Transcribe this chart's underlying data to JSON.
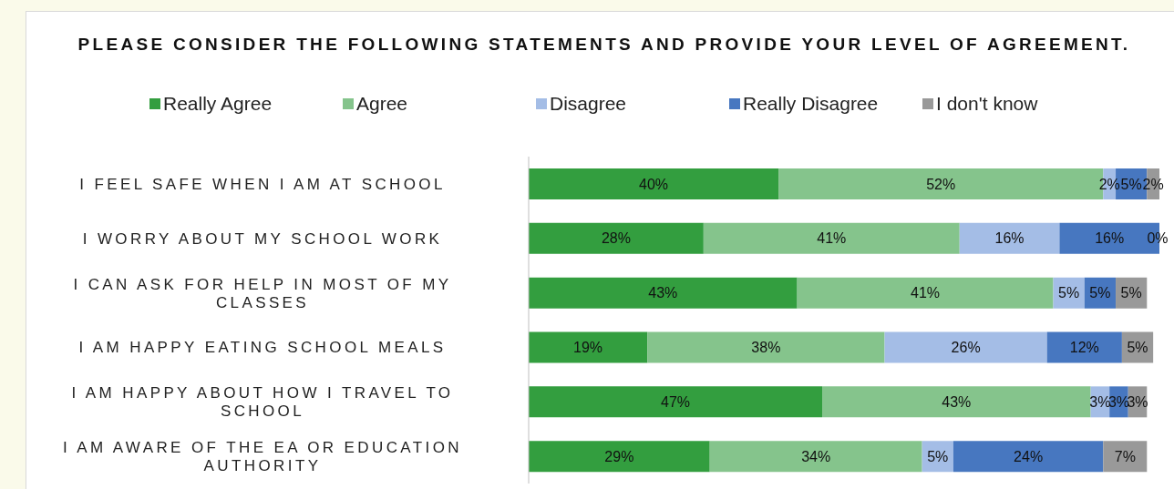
{
  "chart_data": {
    "type": "bar",
    "orientation": "horizontal",
    "stacked": true,
    "title": "PLEASE CONSIDER THE FOLLOWING STATEMENTS AND PROVIDE YOUR LEVEL OF AGREEMENT.",
    "categories": [
      "I FEEL SAFE WHEN I AM AT SCHOOL",
      "I WORRY ABOUT MY SCHOOL WORK",
      "I CAN ASK FOR HELP IN MOST OF MY CLASSES",
      "I AM HAPPY EATING SCHOOL MEALS",
      "I AM HAPPY ABOUT HOW I TRAVEL TO SCHOOL",
      "I AM AWARE OF THE EA OR EDUCATION AUTHORITY"
    ],
    "series": [
      {
        "name": "Really Agree",
        "color": "#339e3f",
        "values": [
          40,
          28,
          43,
          19,
          47,
          29
        ],
        "value_labels": [
          "40%",
          "28%",
          "43%",
          "19%",
          "47%",
          "29%"
        ]
      },
      {
        "name": "Agree",
        "color": "#85c48c",
        "values": [
          52,
          41,
          41,
          38,
          43,
          34
        ],
        "value_labels": [
          "52%",
          "41%",
          "41%",
          "38%",
          "43%",
          "34%"
        ]
      },
      {
        "name": "Disagree",
        "color": "#a4bde6",
        "values": [
          2,
          16,
          5,
          26,
          3,
          5
        ],
        "value_labels": [
          "2%",
          "16%",
          "5%",
          "26%",
          "3%",
          "5%"
        ]
      },
      {
        "name": "Really Disagree",
        "color": "#4777c0",
        "values": [
          5,
          16,
          5,
          12,
          3,
          24
        ],
        "value_labels": [
          "5%",
          "16%",
          "5%",
          "12%",
          "3%",
          "24%"
        ]
      },
      {
        "name": "I don't know",
        "color": "#999999",
        "values": [
          2,
          0,
          5,
          5,
          3,
          7
        ],
        "value_labels": [
          "2%",
          "0%",
          "5%",
          "5%",
          "3%",
          "7%"
        ]
      }
    ],
    "legend": "top"
  }
}
